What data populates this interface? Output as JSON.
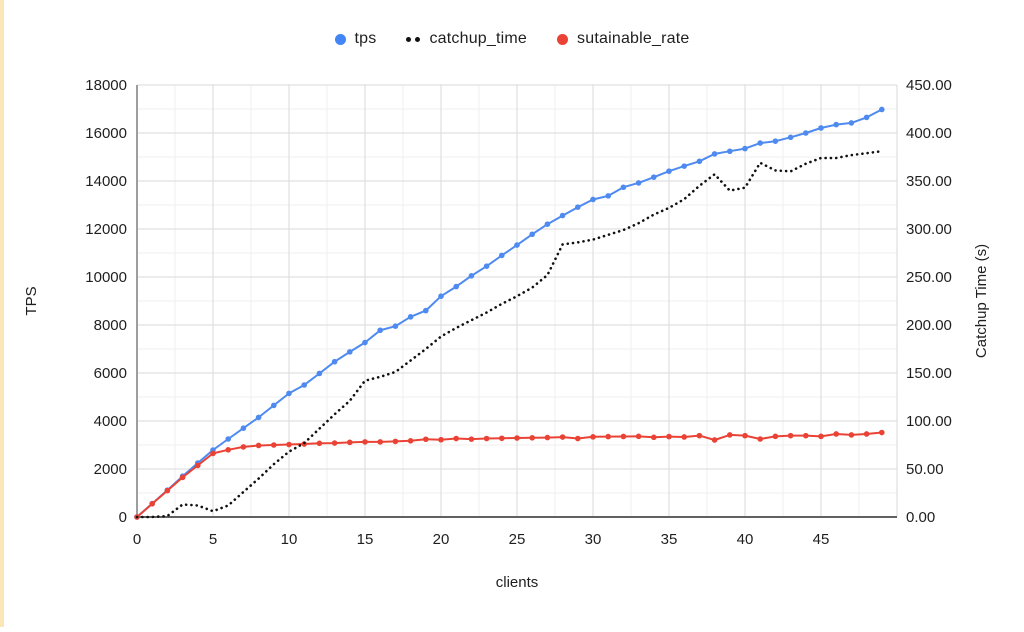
{
  "page": {
    "background": "#ffffff",
    "left_accent_color": "#fbe7b6"
  },
  "legend": {
    "items": [
      {
        "label": "tps",
        "color": "#4285f4",
        "marker": "circle"
      },
      {
        "label": "catchup_time",
        "color": "#111111",
        "marker": "dotted"
      },
      {
        "label": "sutainable_rate",
        "color": "#ea4335",
        "marker": "circle"
      }
    ]
  },
  "chart_data": {
    "type": "line",
    "title": "",
    "xlabel": "clients",
    "ylabel_left": "TPS",
    "ylabel_right": "Catchup Time (s)",
    "legend_position": "top",
    "grid": {
      "major": "#dadada",
      "minor": "#efefef",
      "axis_left": "#9e9e9e",
      "axis_bottom": "#616161"
    },
    "x_range": [
      0,
      50
    ],
    "y_left_range": [
      0,
      18000
    ],
    "y_right_range": [
      0,
      450
    ],
    "x_minor_step": 2.5,
    "y_left_minor_step": 1000,
    "x_tick_labels": [
      "0",
      "5",
      "10",
      "15",
      "20",
      "25",
      "30",
      "35",
      "40",
      "45"
    ],
    "y_left_tick_labels": [
      "0",
      "2000",
      "4000",
      "6000",
      "8000",
      "10000",
      "12000",
      "14000",
      "16000",
      "18000"
    ],
    "y_right_tick_labels": [
      "0.00",
      "50.00",
      "100.00",
      "150.00",
      "200.00",
      "250.00",
      "300.00",
      "350.00",
      "400.00",
      "450.00"
    ],
    "x": [
      0,
      1,
      2,
      3,
      4,
      5,
      6,
      7,
      8,
      9,
      10,
      11,
      12,
      13,
      14,
      15,
      16,
      17,
      18,
      19,
      20,
      21,
      22,
      23,
      24,
      25,
      26,
      27,
      28,
      29,
      30,
      31,
      32,
      33,
      34,
      35,
      36,
      37,
      38,
      39,
      40,
      41,
      42,
      43,
      44,
      45,
      46,
      47,
      48,
      49
    ],
    "series": [
      {
        "name": "tps",
        "axis": "left",
        "color": "#4e8af0",
        "style": "solid",
        "points": true,
        "values": [
          0,
          560,
          1120,
          1700,
          2250,
          2790,
          3250,
          3700,
          4150,
          4650,
          5150,
          5500,
          5980,
          6470,
          6880,
          7270,
          7780,
          7950,
          8340,
          8600,
          9200,
          9600,
          10050,
          10450,
          10900,
          11330,
          11780,
          12200,
          12560,
          12910,
          13230,
          13380,
          13740,
          13920,
          14160,
          14410,
          14620,
          14820,
          15130,
          15240,
          15350,
          15580,
          15660,
          15820,
          16000,
          16210,
          16350,
          16420,
          16650,
          16980
        ]
      },
      {
        "name": "catchup_time",
        "axis": "right",
        "color": "#111111",
        "style": "dotted",
        "points": false,
        "values": [
          0,
          0,
          1,
          13,
          12,
          6,
          12,
          26,
          40,
          55,
          68,
          77,
          92,
          107,
          121,
          142,
          146,
          151,
          163,
          175,
          188,
          197,
          205,
          213,
          222,
          230,
          239,
          252,
          284,
          286,
          289,
          294,
          299,
          306,
          315,
          322,
          331,
          345,
          357,
          340,
          343,
          369,
          361,
          360,
          368,
          374,
          374,
          377,
          379,
          381
        ]
      },
      {
        "name": "sutainable_rate",
        "axis": "left",
        "color": "#ea4335",
        "style": "solid",
        "points": true,
        "values": [
          0,
          550,
          1100,
          1650,
          2150,
          2650,
          2800,
          2920,
          2980,
          3000,
          3020,
          3040,
          3070,
          3080,
          3110,
          3130,
          3130,
          3150,
          3175,
          3240,
          3220,
          3270,
          3245,
          3270,
          3280,
          3290,
          3300,
          3310,
          3330,
          3270,
          3340,
          3350,
          3355,
          3360,
          3320,
          3350,
          3335,
          3390,
          3210,
          3420,
          3390,
          3250,
          3360,
          3390,
          3390,
          3360,
          3460,
          3420,
          3460,
          3520
        ]
      }
    ]
  }
}
